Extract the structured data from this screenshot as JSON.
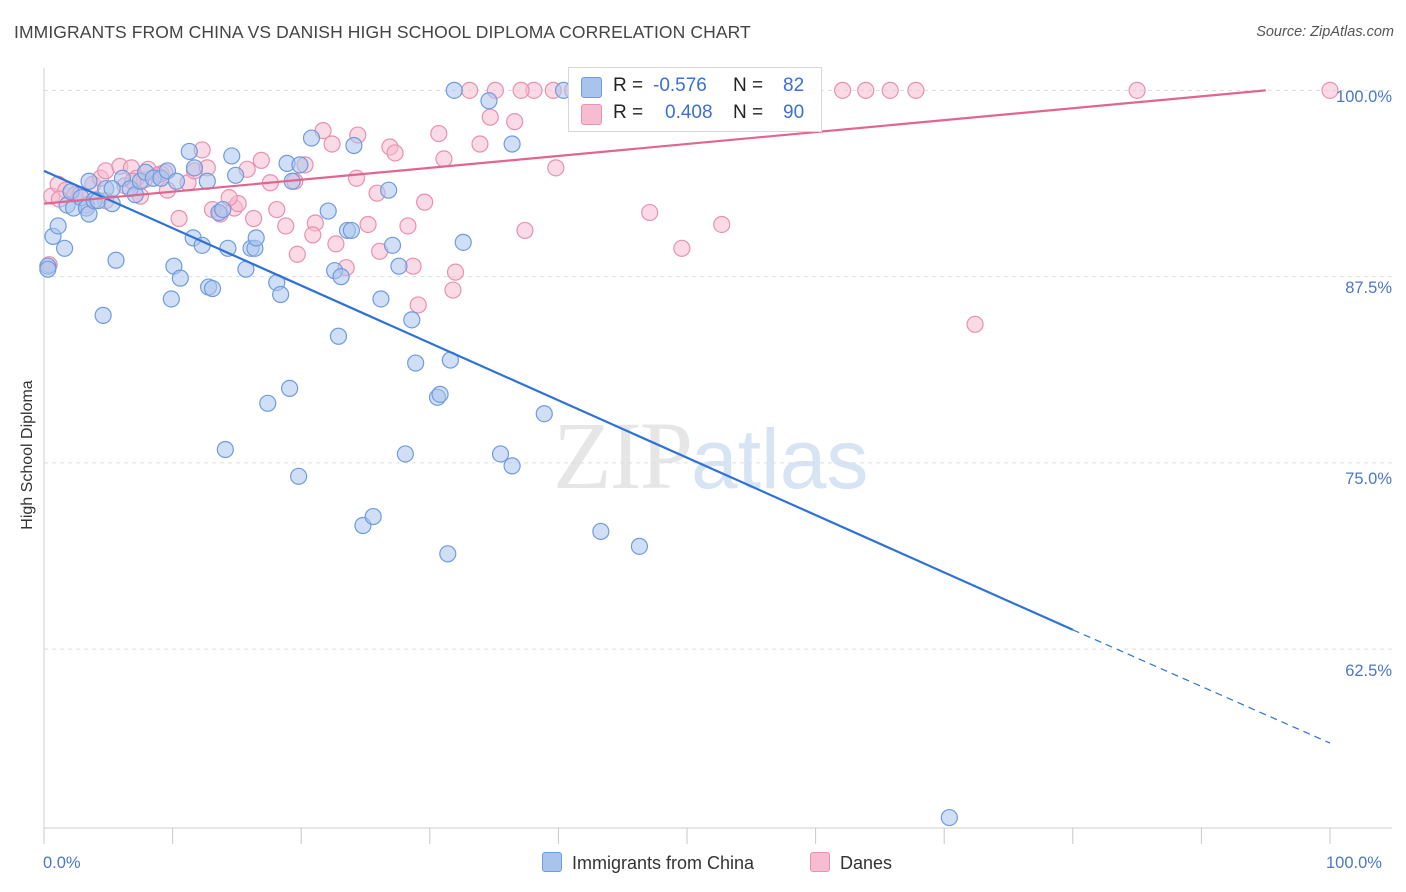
{
  "header": {
    "title": "IMMIGRANTS FROM CHINA VS DANISH HIGH SCHOOL DIPLOMA CORRELATION CHART",
    "source": "Source: ZipAtlas.com"
  },
  "watermark": {
    "zip": "ZIP",
    "atlas": "atlas"
  },
  "legend": {
    "r_label": "R =",
    "n_label": "N =",
    "rows": [
      {
        "r": "-0.576",
        "n": "82"
      },
      {
        "r": "0.408",
        "n": "90"
      }
    ]
  },
  "colors": {
    "series1_fill": "#a9c4ec",
    "series1_stroke": "#6f9be0",
    "series1_line": "#2f72d6",
    "series2_fill": "#f6bcd0",
    "series2_stroke": "#e990b0",
    "series2_line": "#e06690",
    "axis_text": "#4a78c8",
    "grid": "#dddddd"
  },
  "chart_data": {
    "type": "scatter",
    "title": "IMMIGRANTS FROM CHINA VS DANISH HIGH SCHOOL DIPLOMA CORRELATION CHART",
    "xlabel": "",
    "ylabel": "High School Diploma",
    "xlim": [
      0,
      100
    ],
    "ylim": [
      50.5,
      101.5
    ],
    "x_tick_labels": [
      "0.0%",
      "100.0%"
    ],
    "y_ticks": [
      62.5,
      75.0,
      87.5,
      100.0
    ],
    "y_tick_labels": [
      "62.5%",
      "75.0%",
      "87.5%",
      "100.0%"
    ],
    "grid": true,
    "legend_position": "top-center",
    "series": [
      {
        "name": "Immigrants from China",
        "r": -0.576,
        "n": 82,
        "trend": {
          "x0": 0,
          "y0": 94.6,
          "x1": 80.0,
          "y1": 63.8,
          "dash_to_x": 100.0,
          "dash_to_y": 56.2
        },
        "points": [
          [
            0.3,
            88.2
          ],
          [
            0.7,
            90.2
          ],
          [
            1.1,
            90.9
          ],
          [
            1.6,
            89.4
          ],
          [
            1.8,
            92.3
          ],
          [
            2.1,
            93.2
          ],
          [
            2.3,
            92.1
          ],
          [
            2.9,
            92.8
          ],
          [
            3.3,
            92.1
          ],
          [
            3.5,
            91.7
          ],
          [
            3.9,
            92.6
          ],
          [
            4.2,
            92.6
          ],
          [
            4.8,
            93.4
          ],
          [
            5.3,
            92.4
          ],
          [
            5.6,
            88.6
          ],
          [
            6.1,
            94.1
          ],
          [
            6.7,
            93.4
          ],
          [
            7.1,
            93.0
          ],
          [
            7.5,
            93.9
          ],
          [
            7.9,
            94.5
          ],
          [
            8.5,
            94.1
          ],
          [
            9.1,
            94.1
          ],
          [
            9.6,
            94.6
          ],
          [
            10.3,
            93.9
          ],
          [
            11.3,
            95.9
          ],
          [
            11.7,
            94.8
          ],
          [
            12.7,
            93.9
          ],
          [
            9.9,
            86.0
          ],
          [
            10.1,
            88.2
          ],
          [
            10.6,
            87.4
          ],
          [
            11.6,
            90.1
          ],
          [
            12.3,
            89.6
          ],
          [
            12.8,
            86.8
          ],
          [
            13.1,
            86.7
          ],
          [
            13.6,
            91.8
          ],
          [
            14.3,
            89.4
          ],
          [
            14.6,
            95.6
          ],
          [
            14.9,
            94.3
          ],
          [
            15.7,
            88.0
          ],
          [
            16.1,
            89.4
          ],
          [
            16.4,
            89.4
          ],
          [
            16.5,
            90.1
          ],
          [
            18.1,
            87.1
          ],
          [
            18.4,
            86.3
          ],
          [
            18.9,
            95.1
          ],
          [
            19.3,
            93.9
          ],
          [
            19.9,
            95.0
          ],
          [
            20.8,
            96.8
          ],
          [
            22.1,
            91.9
          ],
          [
            22.6,
            87.9
          ],
          [
            23.1,
            87.5
          ],
          [
            23.6,
            90.6
          ],
          [
            23.9,
            90.6
          ],
          [
            24.1,
            96.3
          ],
          [
            26.2,
            86.0
          ],
          [
            26.8,
            93.3
          ],
          [
            27.1,
            89.6
          ],
          [
            27.6,
            88.2
          ],
          [
            28.6,
            84.6
          ],
          [
            28.9,
            81.7
          ],
          [
            30.6,
            79.4
          ],
          [
            30.8,
            79.6
          ],
          [
            31.6,
            81.9
          ],
          [
            31.9,
            100.0
          ],
          [
            32.6,
            89.8
          ],
          [
            34.6,
            99.3
          ],
          [
            36.4,
            96.4
          ],
          [
            38.9,
            78.3
          ],
          [
            40.4,
            100.0
          ],
          [
            43.3,
            70.4
          ],
          [
            46.3,
            69.4
          ],
          [
            0.3,
            88.0
          ],
          [
            4.6,
            84.9
          ],
          [
            14.1,
            75.9
          ],
          [
            17.4,
            79.0
          ],
          [
            19.1,
            80.0
          ],
          [
            19.8,
            74.1
          ],
          [
            22.9,
            83.5
          ],
          [
            24.8,
            70.8
          ],
          [
            25.6,
            71.4
          ],
          [
            28.1,
            75.6
          ],
          [
            31.4,
            68.9
          ],
          [
            35.5,
            75.6
          ],
          [
            36.4,
            74.8
          ],
          [
            70.4,
            51.2
          ],
          [
            3.5,
            93.9
          ],
          [
            5.3,
            93.4
          ],
          [
            13.9,
            92.0
          ]
        ]
      },
      {
        "name": "Danes",
        "r": 0.408,
        "n": 90,
        "trend": {
          "x0": 0,
          "y0": 92.4,
          "x1": 95.0,
          "y1": 100.0,
          "dash_to_x": 95.0,
          "dash_to_y": 100.0
        },
        "points": [
          [
            0.4,
            88.3
          ],
          [
            0.6,
            92.9
          ],
          [
            1.1,
            93.7
          ],
          [
            1.7,
            93.3
          ],
          [
            2.4,
            93.0
          ],
          [
            2.8,
            93.0
          ],
          [
            3.3,
            92.3
          ],
          [
            3.8,
            93.7
          ],
          [
            4.4,
            94.1
          ],
          [
            4.8,
            94.6
          ],
          [
            5.9,
            94.9
          ],
          [
            6.3,
            93.6
          ],
          [
            6.8,
            94.8
          ],
          [
            7.2,
            94.1
          ],
          [
            7.8,
            94.0
          ],
          [
            8.1,
            94.7
          ],
          [
            8.8,
            94.3
          ],
          [
            9.1,
            94.4
          ],
          [
            9.6,
            93.3
          ],
          [
            10.5,
            91.4
          ],
          [
            11.2,
            93.8
          ],
          [
            11.7,
            94.6
          ],
          [
            12.3,
            96.0
          ],
          [
            12.7,
            94.8
          ],
          [
            13.1,
            92.0
          ],
          [
            13.7,
            91.7
          ],
          [
            14.8,
            92.1
          ],
          [
            15.1,
            92.4
          ],
          [
            15.8,
            94.7
          ],
          [
            16.3,
            91.4
          ],
          [
            16.9,
            95.3
          ],
          [
            17.6,
            93.8
          ],
          [
            18.1,
            92.0
          ],
          [
            18.8,
            90.9
          ],
          [
            19.5,
            93.9
          ],
          [
            20.3,
            95.0
          ],
          [
            21.1,
            91.1
          ],
          [
            21.7,
            97.3
          ],
          [
            22.4,
            96.4
          ],
          [
            22.7,
            89.7
          ],
          [
            23.5,
            88.1
          ],
          [
            24.3,
            94.1
          ],
          [
            25.2,
            91.0
          ],
          [
            26.1,
            89.2
          ],
          [
            26.9,
            96.2
          ],
          [
            27.3,
            95.8
          ],
          [
            28.3,
            90.9
          ],
          [
            28.7,
            88.2
          ],
          [
            29.6,
            92.5
          ],
          [
            30.7,
            97.1
          ],
          [
            31.1,
            95.4
          ],
          [
            32.0,
            87.8
          ],
          [
            33.1,
            100.0
          ],
          [
            33.9,
            96.4
          ],
          [
            34.7,
            98.2
          ],
          [
            35.1,
            100.0
          ],
          [
            36.6,
            97.9
          ],
          [
            37.4,
            90.6
          ],
          [
            38.1,
            100.0
          ],
          [
            39.8,
            94.8
          ],
          [
            41.1,
            100.0
          ],
          [
            45.1,
            100.0
          ],
          [
            47.1,
            91.8
          ],
          [
            49.6,
            89.4
          ],
          [
            50.8,
            100.0
          ],
          [
            52.7,
            91.0
          ],
          [
            53.4,
            100.0
          ],
          [
            55.8,
            100.0
          ],
          [
            62.1,
            100.0
          ],
          [
            63.9,
            100.0
          ],
          [
            65.8,
            100.0
          ],
          [
            67.8,
            100.0
          ],
          [
            72.4,
            84.3
          ],
          [
            85.0,
            100.0
          ],
          [
            100.0,
            100.0
          ],
          [
            1.2,
            92.7
          ],
          [
            4.8,
            92.6
          ],
          [
            6.9,
            93.9
          ],
          [
            9.4,
            94.5
          ],
          [
            14.4,
            92.8
          ],
          [
            19.7,
            89.0
          ],
          [
            25.9,
            93.1
          ],
          [
            29.1,
            85.6
          ],
          [
            31.8,
            86.6
          ],
          [
            24.4,
            97.0
          ],
          [
            37.1,
            100.0
          ],
          [
            39.6,
            100.0
          ],
          [
            42.1,
            100.0
          ],
          [
            20.9,
            90.3
          ],
          [
            7.5,
            92.9
          ]
        ]
      }
    ]
  }
}
